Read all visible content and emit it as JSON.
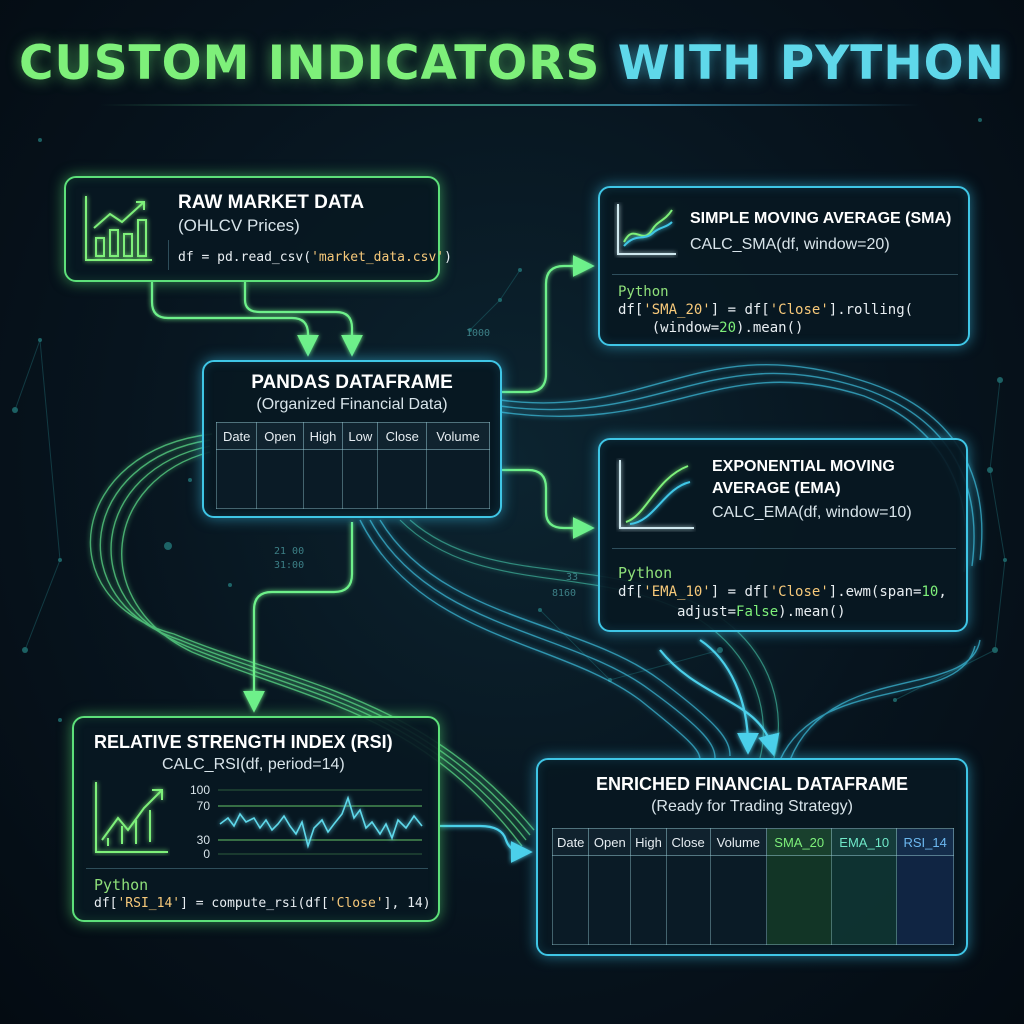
{
  "title": {
    "part1": "CUSTOM INDICATORS",
    "part2": "WITH PYTHON"
  },
  "raw": {
    "title": "RAW MARKET DATA",
    "subtitle": "(OHLCV Prices)",
    "code_pre": "df = pd.read_csv(",
    "code_str": "'market_data.csv'",
    "code_post": ")"
  },
  "pandas": {
    "title": "PANDAS DATAFRAME",
    "subtitle": "(Organized Financial Data)",
    "columns": [
      "Date",
      "Open",
      "High",
      "Low",
      "Close",
      "Volume"
    ]
  },
  "sma": {
    "title": "SIMPLE MOVING AVERAGE (SMA)",
    "signature": "CALC_SMA(df, window=20)",
    "lang": "Python",
    "l1a": "df[",
    "l1s": "'SMA_20'",
    "l1b": "] = df[",
    "l1c": "'Close'",
    "l1d": "].rolling(",
    "l2a": "    (window=",
    "l2n": "20",
    "l2b": ").mean()"
  },
  "ema": {
    "title_line1": "EXPONENTIAL MOVING",
    "title_line2": "AVERAGE (EMA)",
    "signature": "CALC_EMA(df, window=10)",
    "lang": "Python",
    "l1a": "df[",
    "l1s": "'EMA_10'",
    "l1b": "] = df[",
    "l1c": "'Close'",
    "l1d": "].ewm(span=",
    "l1n": "10",
    "l1e": ",",
    "l2a": "       adjust=",
    "l2n": "False",
    "l2b": ").mean()"
  },
  "rsi": {
    "title": "RELATIVE STRENGTH INDEX (RSI)",
    "signature": "CALC_RSI(df, period=14)",
    "lang": "Python",
    "code_a": "df[",
    "code_s": "'RSI_14'",
    "code_b": "] = compute_rsi(df[",
    "code_c": "'Close'",
    "code_d": "], 14)",
    "levels": [
      "100",
      "70",
      "30",
      "0"
    ]
  },
  "enriched": {
    "title": "ENRICHED FINANCIAL DATAFRAME",
    "subtitle": "(Ready for Trading Strategy)",
    "columns": [
      "Date",
      "Open",
      "High",
      "Close",
      "Volume"
    ],
    "new_columns": [
      {
        "label": "SMA_20",
        "color": "#7ef07a"
      },
      {
        "label": "EMA_10",
        "color": "#6fe8c8"
      },
      {
        "label": "RSI_14",
        "color": "#6cb8f0"
      }
    ]
  },
  "bg_numbers": [
    "1000",
    "21 00",
    "31:00",
    "33",
    "8160"
  ]
}
